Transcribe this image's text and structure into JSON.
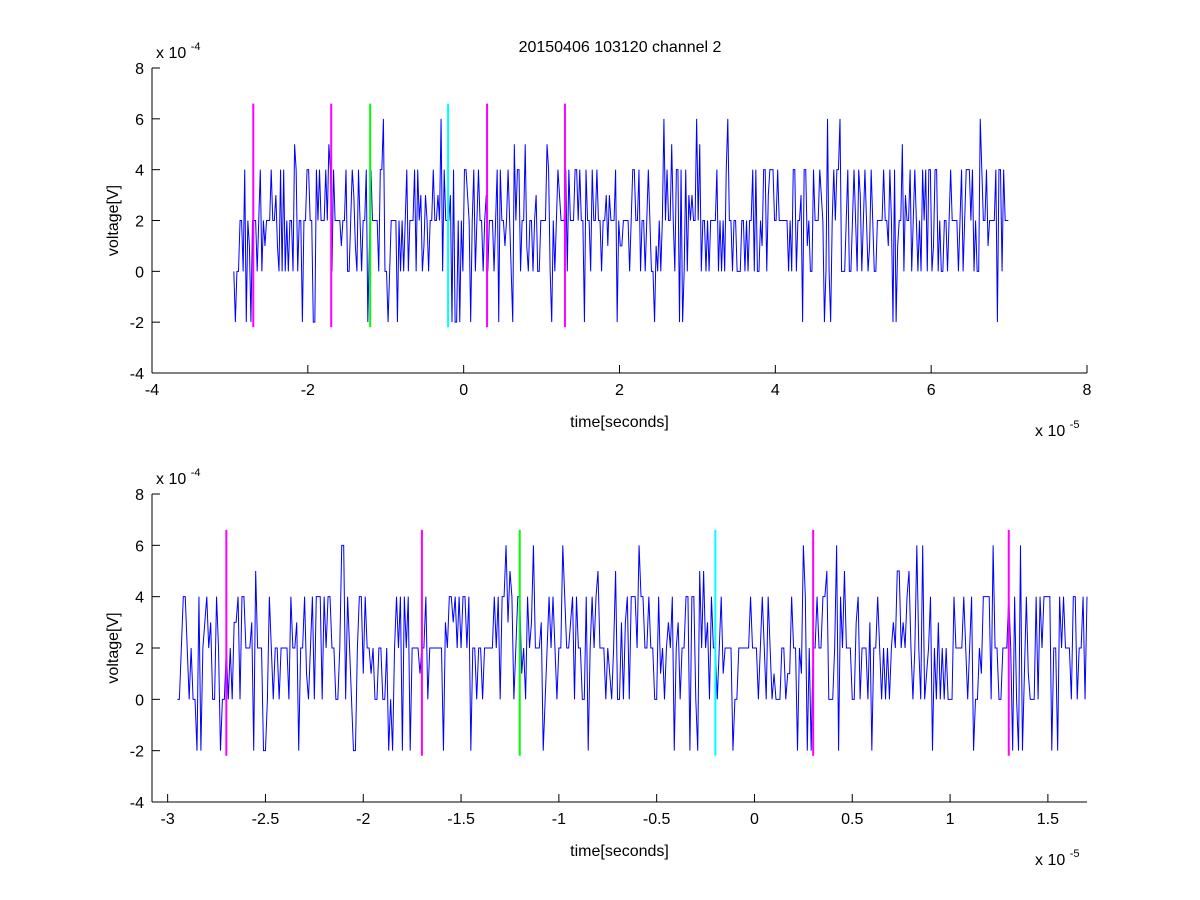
{
  "figure_title": "20150406 103120 channel 2",
  "chart_data": [
    {
      "type": "line",
      "title": "20150406 103120 channel 2",
      "xlabel": "time[seconds]",
      "ylabel": "voltage[V]",
      "x_multiplier": "x 10",
      "x_exponent": "-5",
      "y_multiplier": "x 10",
      "y_exponent": "-4",
      "xlim": [
        -4,
        8
      ],
      "ylim": [
        -4,
        8
      ],
      "xticks": [
        -4,
        -2,
        0,
        2,
        4,
        6,
        8
      ],
      "yticks": [
        -4,
        -2,
        0,
        2,
        4,
        6,
        8
      ],
      "signal_color": "#0000ff",
      "series": [
        {
          "x_start": -2.95,
          "x_end": 7.0,
          "x_step": 0.02,
          "levels": [
            0,
            2,
            4,
            6,
            -2
          ],
          "values_description_only": null
        }
      ],
      "markers": [
        {
          "x": -2.7,
          "color": "#ff00ff",
          "y_range": [
            -2.2,
            6.6
          ]
        },
        {
          "x": -1.7,
          "color": "#ff00ff",
          "y_range": [
            -2.2,
            6.6
          ]
        },
        {
          "x": -1.2,
          "color": "#00ff00",
          "y_range": [
            -2.2,
            6.6
          ]
        },
        {
          "x": -0.2,
          "color": "#00ffff",
          "y_range": [
            -2.2,
            6.6
          ]
        },
        {
          "x": 0.3,
          "color": "#ff00ff",
          "y_range": [
            -2.2,
            6.6
          ]
        },
        {
          "x": 1.3,
          "color": "#ff00ff",
          "y_range": [
            -2.2,
            6.6
          ]
        }
      ]
    },
    {
      "type": "line",
      "title": "",
      "xlabel": "time[seconds]",
      "ylabel": "voltage[V]",
      "x_multiplier": "x 10",
      "x_exponent": "-5",
      "y_multiplier": "x 10",
      "y_exponent": "-4",
      "xlim": [
        -3.08,
        1.7
      ],
      "ylim": [
        -4,
        8
      ],
      "xticks": [
        -3,
        -2.5,
        -2,
        -1.5,
        -1,
        -0.5,
        0,
        0.5,
        1,
        1.5
      ],
      "yticks": [
        -4,
        -2,
        0,
        2,
        4,
        6,
        8
      ],
      "signal_color": "#0000ff",
      "series": [
        {
          "x_start": -2.95,
          "x_end": 1.7,
          "x_step": 0.01,
          "levels": [
            0,
            2,
            4,
            6,
            -2
          ]
        }
      ],
      "markers": [
        {
          "x": -2.7,
          "color": "#ff00ff",
          "y_range": [
            -2.2,
            6.6
          ]
        },
        {
          "x": -1.7,
          "color": "#ff00ff",
          "y_range": [
            -2.2,
            6.6
          ]
        },
        {
          "x": -1.2,
          "color": "#00ff00",
          "y_range": [
            -2.2,
            6.6
          ]
        },
        {
          "x": -0.2,
          "color": "#00ffff",
          "y_range": [
            -2.2,
            6.6
          ]
        },
        {
          "x": 0.3,
          "color": "#ff00ff",
          "y_range": [
            -2.2,
            6.6
          ]
        },
        {
          "x": 1.3,
          "color": "#ff00ff",
          "y_range": [
            -2.2,
            6.6
          ]
        }
      ]
    }
  ]
}
